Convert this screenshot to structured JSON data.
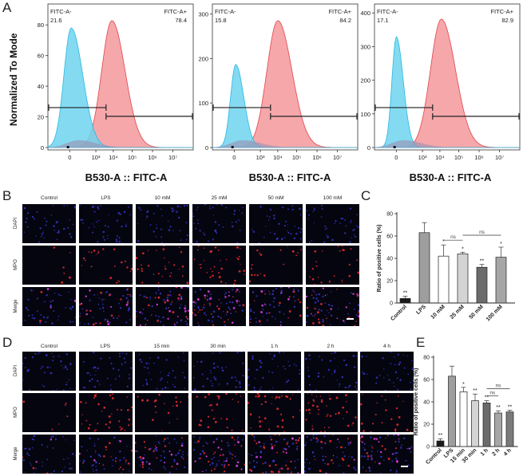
{
  "panels": {
    "A": "A",
    "B": "B",
    "C": "C",
    "D": "D",
    "E": "E"
  },
  "panelA": {
    "ylabel": "Normalized To Mode",
    "xlabel": "B530-A :: FITC-A",
    "xticks": [
      "0",
      "10³",
      "10⁴",
      "10⁵",
      "10⁶",
      "10⁷"
    ],
    "colors": {
      "negative": "#6fd3ee",
      "positive": "#f28a8e",
      "negative_stroke": "#28b9e3",
      "positive_stroke": "#e0454d"
    },
    "plots": [
      {
        "neg_label": "FITC-A-",
        "neg_value": "21.6",
        "pos_label": "FITC-A+",
        "pos_value": "78.4",
        "yticks": [
          "0",
          "20",
          "40",
          "60",
          "80"
        ],
        "ymax": 90
      },
      {
        "neg_label": "FITC-A-",
        "neg_value": "15.8",
        "pos_label": "FITC-A+",
        "pos_value": "84.2",
        "yticks": [
          "0",
          "100",
          "200",
          "300"
        ],
        "ymax": 310
      },
      {
        "neg_label": "FITC-A-",
        "neg_value": "17.1",
        "pos_label": "FITC-A+",
        "pos_value": "82.9",
        "yticks": [
          "0",
          "100",
          "200",
          "300",
          "400"
        ],
        "ymax": 410
      }
    ]
  },
  "panelB": {
    "columns": [
      "Control",
      "LPS",
      "10 mM",
      "25 mM",
      "50 mM",
      "100 mM"
    ],
    "rows": [
      "DAPI",
      "MPO",
      "Merge"
    ]
  },
  "panelD": {
    "columns": [
      "Control",
      "LPS",
      "15 min",
      "30 min",
      "1 h",
      "2 h",
      "4 h"
    ],
    "rows": [
      "DAPI",
      "MPO",
      "Merge"
    ]
  },
  "chart_data": [
    {
      "type": "bar",
      "panel": "C",
      "ylabel": "Ratio of positive cells (%)",
      "ylim": [
        0,
        80
      ],
      "yticks": [
        "0",
        "20",
        "40",
        "60",
        "80"
      ],
      "categories": [
        "Control",
        "LPS",
        "10 mM",
        "25 mM",
        "50 mM",
        "100 mM"
      ],
      "values": [
        4,
        63,
        42,
        44,
        32,
        41
      ],
      "errors": [
        2,
        9,
        10,
        1.5,
        2.5,
        9
      ],
      "fills": [
        "#1a1a1a",
        "#9e9e9e",
        "#ffffff",
        "#d4d4d4",
        "#6b6b6b",
        "#a6a6a6"
      ],
      "significance": [
        "**",
        "",
        "*",
        "*",
        "**",
        "*"
      ],
      "comparisons": [
        {
          "from": 2,
          "to": 3,
          "label": "ns"
        },
        {
          "from": 3,
          "to": 5,
          "label": "ns"
        }
      ]
    },
    {
      "type": "bar",
      "panel": "E",
      "ylabel": "Ratio of positive cells (%)",
      "ylim": [
        0,
        80
      ],
      "yticks": [
        "0",
        "20",
        "40",
        "60",
        "80"
      ],
      "categories": [
        "Control",
        "LPS",
        "15 min",
        "30 min",
        "1 h",
        "2 h",
        "4 h"
      ],
      "values": [
        5,
        63,
        49,
        41,
        39,
        30,
        31
      ],
      "errors": [
        2,
        9,
        4,
        6,
        2,
        2,
        1.5
      ],
      "fills": [
        "#1a1a1a",
        "#9e9e9e",
        "#ffffff",
        "#d4d4d4",
        "#6b6b6b",
        "#a6a6a6",
        "#7a7a7a"
      ],
      "significance": [
        "**",
        "",
        "*",
        "**",
        "**",
        "**",
        "**"
      ],
      "comparisons": [
        {
          "from": 4,
          "to": 5,
          "label": "ns"
        },
        {
          "from": 4,
          "to": 6,
          "label": "ns"
        }
      ]
    }
  ]
}
